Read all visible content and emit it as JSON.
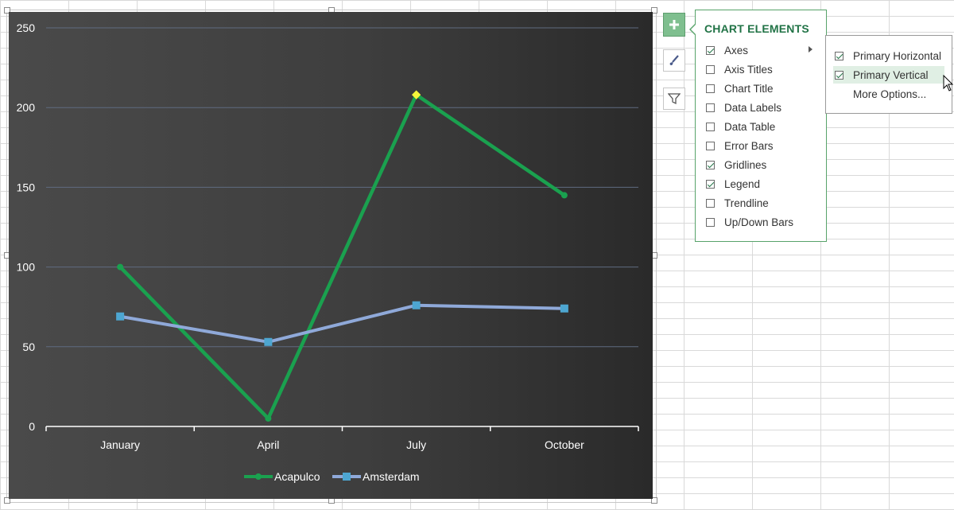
{
  "chart_data": {
    "type": "line",
    "categories": [
      "January",
      "April",
      "July",
      "October"
    ],
    "series": [
      {
        "name": "Acapulco",
        "values": [
          100,
          5,
          208,
          145
        ],
        "color": "#1aa14f"
      },
      {
        "name": "Amsterdam",
        "values": [
          69,
          53,
          76,
          74
        ],
        "color": "#8fa9d9"
      }
    ],
    "ylim": [
      0,
      250
    ],
    "yticks": [
      "0",
      "50",
      "100",
      "150",
      "200",
      "250"
    ],
    "title": "",
    "xlabel": "",
    "ylabel": "",
    "grid": true,
    "legend": "bottom",
    "highlight_point": {
      "series": "Acapulco",
      "category": "July",
      "color": "#f5f53a"
    }
  },
  "panel": {
    "title": "CHART ELEMENTS",
    "items": [
      {
        "label": "Axes",
        "checked": true
      },
      {
        "label": "Axis Titles",
        "checked": false
      },
      {
        "label": "Chart Title",
        "checked": false
      },
      {
        "label": "Data Labels",
        "checked": false
      },
      {
        "label": "Data Table",
        "checked": false
      },
      {
        "label": "Error Bars",
        "checked": false
      },
      {
        "label": "Gridlines",
        "checked": true
      },
      {
        "label": "Legend",
        "checked": true
      },
      {
        "label": "Trendline",
        "checked": false
      },
      {
        "label": "Up/Down Bars",
        "checked": false
      }
    ]
  },
  "submenu": {
    "items": [
      {
        "label": "Primary Horizontal",
        "checked": true
      },
      {
        "label": "Primary Vertical",
        "checked": true
      },
      {
        "label": "More Options...",
        "checked": null
      }
    ]
  },
  "buttons": {
    "elements": "plus-icon",
    "styles": "brush-icon",
    "filters": "filter-icon"
  },
  "colors": {
    "accent": "#217346",
    "panel_border": "#58a36a",
    "elements_button": "#7fbf8f"
  }
}
